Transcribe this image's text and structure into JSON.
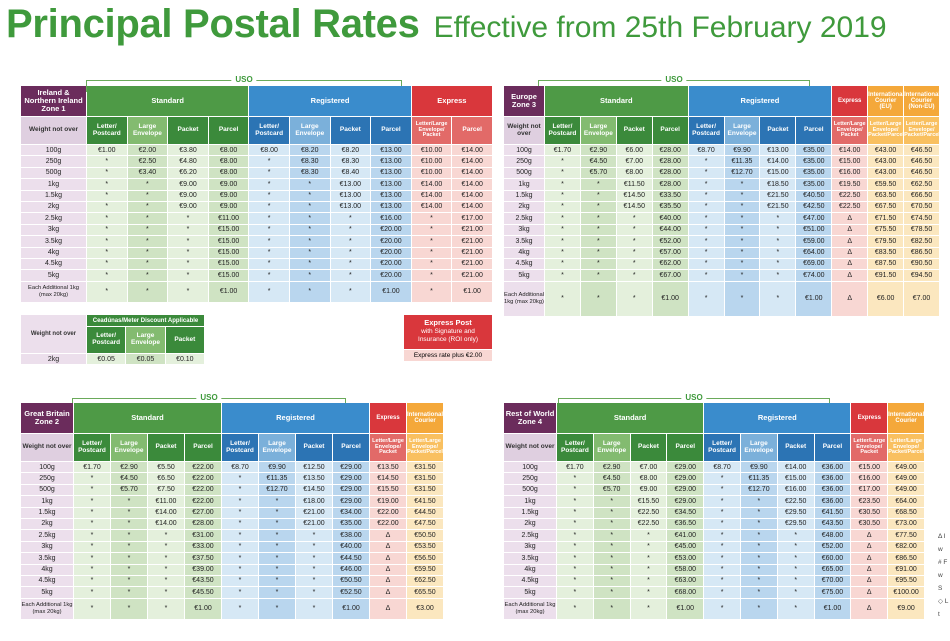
{
  "title": {
    "main": "Principal Postal Rates",
    "effective": "Effective from 25th February 2019"
  },
  "uso_label": "USO",
  "labels": {
    "weight_not_over": "Weight not over",
    "standard": "Standard",
    "registered": "Registered",
    "express": "Express",
    "international_courier": "International Courier",
    "sub_letter_postcard": "Letter/ Postcard",
    "sub_large_envelope": "Large Envelope",
    "sub_packet": "Packet",
    "sub_parcel": "Parcel",
    "sub_letter_large_env_packet": "Letter/Large Envelope/ Packet",
    "sub_letter_large_env_packet_parcel": "Letter/Large Envelope/ Packet/Parcel"
  },
  "tables": [
    {
      "zone": "Ireland & Northern Ireland Zone 1",
      "express_label": "Express",
      "weights": [
        "100g",
        "250g",
        "500g",
        "1kg",
        "1.5kg",
        "2kg",
        "2.5kg",
        "3kg",
        "3.5kg",
        "4kg",
        "4.5kg",
        "5kg",
        "Each Additional 1kg (max 20kg)"
      ],
      "rows": [
        [
          "€1.00",
          "€2.00",
          "€3.80",
          "€8.00",
          "€8.00",
          "€8.20",
          "€8.20",
          "€13.00",
          "€10.00",
          "€14.00"
        ],
        [
          "*",
          "€2.50",
          "€4.80",
          "€8.00",
          "*",
          "€8.30",
          "€8.30",
          "€13.00",
          "€10.00",
          "€14.00"
        ],
        [
          "*",
          "€3.40",
          "€6.20",
          "€8.00",
          "*",
          "€8.30",
          "€8.40",
          "€13.00",
          "€10.00",
          "€14.00"
        ],
        [
          "*",
          "*",
          "€9.00",
          "€9.00",
          "*",
          "*",
          "€13.00",
          "€13.00",
          "€14.00",
          "€14.00"
        ],
        [
          "*",
          "*",
          "€9.00",
          "€9.00",
          "*",
          "*",
          "€13.00",
          "€13.00",
          "€14.00",
          "€14.00"
        ],
        [
          "*",
          "*",
          "€9.00",
          "€9.00",
          "*",
          "*",
          "€13.00",
          "€13.00",
          "€14.00",
          "€14.00"
        ],
        [
          "*",
          "*",
          "*",
          "€11.00",
          "*",
          "*",
          "*",
          "€16.00",
          "*",
          "€17.00"
        ],
        [
          "*",
          "*",
          "*",
          "€15.00",
          "*",
          "*",
          "*",
          "€20.00",
          "*",
          "€21.00"
        ],
        [
          "*",
          "*",
          "*",
          "€15.00",
          "*",
          "*",
          "*",
          "€20.00",
          "*",
          "€21.00"
        ],
        [
          "*",
          "*",
          "*",
          "€15.00",
          "*",
          "*",
          "*",
          "€20.00",
          "*",
          "€21.00"
        ],
        [
          "*",
          "*",
          "*",
          "€15.00",
          "*",
          "*",
          "*",
          "€20.00",
          "*",
          "€21.00"
        ],
        [
          "*",
          "*",
          "*",
          "€15.00",
          "*",
          "*",
          "*",
          "€20.00",
          "*",
          "€21.00"
        ],
        [
          "*",
          "*",
          "*",
          "€1.00",
          "*",
          "*",
          "*",
          "€1.00",
          "*",
          "€1.00"
        ]
      ],
      "discount": {
        "header": "Ceadúnas/Meter Discount Applicable",
        "weight_label": "Weight not over",
        "cols": [
          "Letter/ Postcard",
          "Large Envelope",
          "Packet"
        ],
        "weight": "2kg",
        "values": [
          "€0.05",
          "€0.05",
          "€0.10"
        ]
      },
      "express_post": {
        "title": "Express Post",
        "text": "with Signature and Insurance (ROI only)",
        "note": "Express rate plus €2.00"
      }
    },
    {
      "zone": "Europe Zone 3",
      "express_label": "Express",
      "intl_labels": [
        "International Courier (EU)",
        "International Courier (Non-EU)"
      ],
      "intl_sub": "Letter/Large Envelope/ Packet/Parcel",
      "weights": [
        "100g",
        "250g",
        "500g",
        "1kg",
        "1.5kg",
        "2kg",
        "2.5kg",
        "3kg",
        "3.5kg",
        "4kg",
        "4.5kg",
        "5kg",
        "Each Additional 1kg (max 20kg)"
      ],
      "rows": [
        [
          "€1.70",
          "€2.90",
          "€6.00",
          "€28.00",
          "€8.70",
          "€9.90",
          "€13.00",
          "€35.00",
          "€14.00",
          "€43.00",
          "€46.50"
        ],
        [
          "*",
          "€4.50",
          "€7.00",
          "€28.00",
          "*",
          "€11.35",
          "€14.00",
          "€35.00",
          "€15.00",
          "€43.00",
          "€46.50"
        ],
        [
          "*",
          "€5.70",
          "€8.00",
          "€28.00",
          "*",
          "€12.70",
          "€15.00",
          "€35.00",
          "€16.00",
          "€43.00",
          "€46.50"
        ],
        [
          "*",
          "*",
          "€11.50",
          "€28.00",
          "*",
          "*",
          "€18.50",
          "€35.00",
          "€19.50",
          "€59.50",
          "€62.50"
        ],
        [
          "*",
          "*",
          "€14.50",
          "€33.50",
          "*",
          "*",
          "€21.50",
          "€40.50",
          "€22.50",
          "€63.50",
          "€66.50"
        ],
        [
          "*",
          "*",
          "€14.50",
          "€35.50",
          "*",
          "*",
          "€21.50",
          "€42.50",
          "€22.50",
          "€67.50",
          "€70.50"
        ],
        [
          "*",
          "*",
          "*",
          "€40.00",
          "*",
          "*",
          "*",
          "€47.00",
          "Δ",
          "€71.50",
          "€74.50"
        ],
        [
          "*",
          "*",
          "*",
          "€44.00",
          "*",
          "*",
          "*",
          "€51.00",
          "Δ",
          "€75.50",
          "€78.50"
        ],
        [
          "*",
          "*",
          "*",
          "€52.00",
          "*",
          "*",
          "*",
          "€59.00",
          "Δ",
          "€79.50",
          "€82.50"
        ],
        [
          "*",
          "*",
          "*",
          "€57.00",
          "*",
          "*",
          "*",
          "€64.00",
          "Δ",
          "€83.50",
          "€86.50"
        ],
        [
          "*",
          "*",
          "*",
          "€62.00",
          "*",
          "*",
          "*",
          "€69.00",
          "Δ",
          "€87.50",
          "€90.50"
        ],
        [
          "*",
          "*",
          "*",
          "€67.00",
          "*",
          "*",
          "*",
          "€74.00",
          "Δ",
          "€91.50",
          "€94.50"
        ],
        [
          "*",
          "*",
          "*",
          "€1.00",
          "*",
          "*",
          "*",
          "€1.00",
          "Δ",
          "€6.00",
          "€7.00"
        ]
      ]
    },
    {
      "zone": "Great Britain Zone 2",
      "express_label": "Express",
      "intl_labels": [
        "International Courier"
      ],
      "intl_sub": "Letter/Large Envelope/ Packet/Parcel",
      "weights": [
        "100g",
        "250g",
        "500g",
        "1kg",
        "1.5kg",
        "2kg",
        "2.5kg",
        "3kg",
        "3.5kg",
        "4kg",
        "4.5kg",
        "5kg",
        "Each Additional 1kg (max 20kg)"
      ],
      "rows": [
        [
          "€1.70",
          "€2.90",
          "€5.50",
          "€22.00",
          "€8.70",
          "€9.90",
          "€12.50",
          "€29.00",
          "€13.50",
          "€31.50"
        ],
        [
          "*",
          "€4.50",
          "€6.50",
          "€22.00",
          "*",
          "€11.35",
          "€13.50",
          "€29.00",
          "€14.50",
          "€31.50"
        ],
        [
          "*",
          "€5.70",
          "€7.50",
          "€22.00",
          "*",
          "€12.70",
          "€14.50",
          "€29.00",
          "€15.50",
          "€31.50"
        ],
        [
          "*",
          "*",
          "€11.00",
          "€22.00",
          "*",
          "*",
          "€18.00",
          "€29.00",
          "€19.00",
          "€41.50"
        ],
        [
          "*",
          "*",
          "€14.00",
          "€27.00",
          "*",
          "*",
          "€21.00",
          "€34.00",
          "€22.00",
          "€44.50"
        ],
        [
          "*",
          "*",
          "€14.00",
          "€28.00",
          "*",
          "*",
          "€21.00",
          "€35.00",
          "€22.00",
          "€47.50"
        ],
        [
          "*",
          "*",
          "*",
          "€31.00",
          "*",
          "*",
          "*",
          "€38.00",
          "Δ",
          "€50.50"
        ],
        [
          "*",
          "*",
          "*",
          "€33.00",
          "*",
          "*",
          "*",
          "€40.00",
          "Δ",
          "€53.50"
        ],
        [
          "*",
          "*",
          "*",
          "€37.50",
          "*",
          "*",
          "*",
          "€44.50",
          "Δ",
          "€56.50"
        ],
        [
          "*",
          "*",
          "*",
          "€39.00",
          "*",
          "*",
          "*",
          "€46.00",
          "Δ",
          "€59.50"
        ],
        [
          "*",
          "*",
          "*",
          "€43.50",
          "*",
          "*",
          "*",
          "€50.50",
          "Δ",
          "€62.50"
        ],
        [
          "*",
          "*",
          "*",
          "€45.50",
          "*",
          "*",
          "*",
          "€52.50",
          "Δ",
          "€65.50"
        ],
        [
          "*",
          "*",
          "*",
          "€1.00",
          "*",
          "*",
          "*",
          "€1.00",
          "Δ",
          "€3.00"
        ]
      ]
    },
    {
      "zone": "Rest of World Zone 4",
      "express_label": "Express",
      "intl_labels": [
        "International Courier"
      ],
      "intl_sub": "Letter/Large Envelope/ Packet/Parcel",
      "weights": [
        "100g",
        "250g",
        "500g",
        "1kg",
        "1.5kg",
        "2kg",
        "2.5kg",
        "3kg",
        "3.5kg",
        "4kg",
        "4.5kg",
        "5kg",
        "Each Additional 1kg (max 20kg)"
      ],
      "rows": [
        [
          "€1.70",
          "€2.90",
          "€7.00",
          "€29.00",
          "€8.70",
          "€9.90",
          "€14.00",
          "€36.00",
          "€15.00",
          "€49.00"
        ],
        [
          "*",
          "€4.50",
          "€8.00",
          "€29.00",
          "*",
          "€11.35",
          "€15.00",
          "€36.00",
          "€16.00",
          "€49.00"
        ],
        [
          "*",
          "€5.70",
          "€9.00",
          "€29.00",
          "*",
          "€12.70",
          "€16.00",
          "€36.00",
          "€17.00",
          "€49.00"
        ],
        [
          "*",
          "*",
          "€15.50",
          "€29.00",
          "*",
          "*",
          "€22.50",
          "€36.00",
          "€23.50",
          "€64.00"
        ],
        [
          "*",
          "*",
          "€22.50",
          "€34.50",
          "*",
          "*",
          "€29.50",
          "€41.50",
          "€30.50",
          "€68.50"
        ],
        [
          "*",
          "*",
          "€22.50",
          "€36.50",
          "*",
          "*",
          "€29.50",
          "€43.50",
          "€30.50",
          "€73.00"
        ],
        [
          "*",
          "*",
          "*",
          "€41.00",
          "*",
          "*",
          "*",
          "€48.00",
          "Δ",
          "€77.50"
        ],
        [
          "*",
          "*",
          "*",
          "€45.00",
          "*",
          "*",
          "*",
          "€52.00",
          "Δ",
          "€82.00"
        ],
        [
          "*",
          "*",
          "*",
          "€53.00",
          "*",
          "*",
          "*",
          "€60.00",
          "Δ",
          "€86.50"
        ],
        [
          "*",
          "*",
          "*",
          "€58.00",
          "*",
          "*",
          "*",
          "€65.00",
          "Δ",
          "€91.00"
        ],
        [
          "*",
          "*",
          "*",
          "€63.00",
          "*",
          "*",
          "*",
          "€70.00",
          "Δ",
          "€95.50"
        ],
        [
          "*",
          "*",
          "*",
          "€68.00",
          "*",
          "*",
          "*",
          "€75.00",
          "Δ",
          "€100.00"
        ],
        [
          "*",
          "*",
          "*",
          "€1.00",
          "*",
          "*",
          "*",
          "€1.00",
          "Δ",
          "€9.00"
        ]
      ]
    }
  ],
  "right_notes": [
    "Δ I",
    "w",
    "# F",
    "w",
    "S",
    "◇ L",
    "t"
  ]
}
